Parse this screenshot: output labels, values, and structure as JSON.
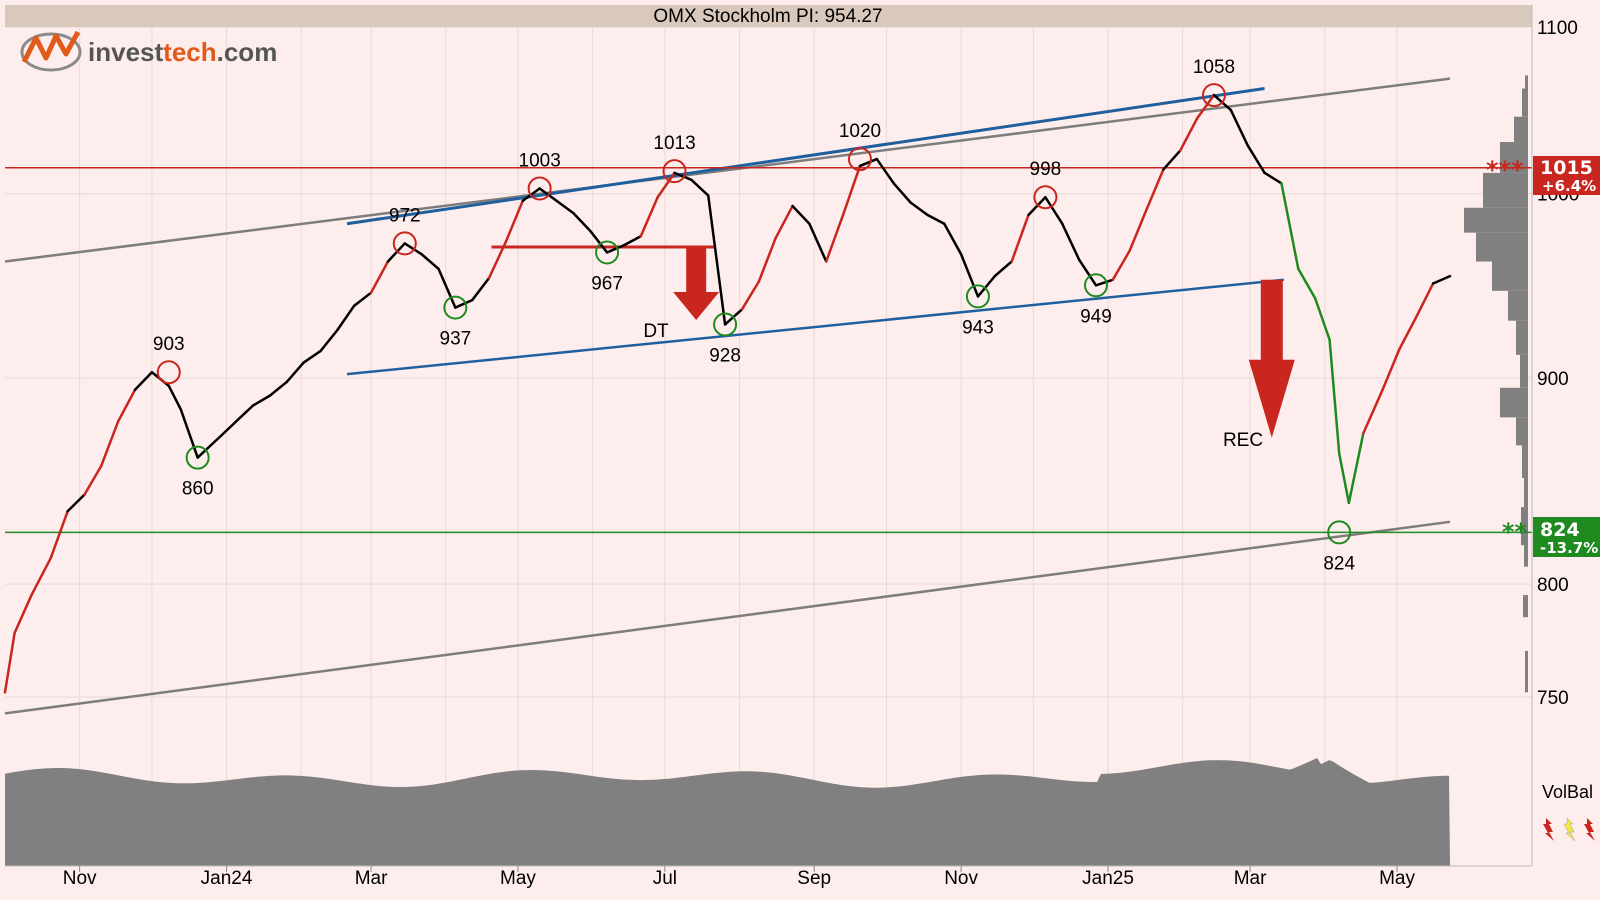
{
  "title": "OMX Stockholm PI: 954.27",
  "logo": {
    "text_a": "invest",
    "text_b": "tech",
    "text_c": ".com",
    "icon": "investtech-logo-icon"
  },
  "colors": {
    "background": "#fdeeed",
    "header_bar": "#d9c9bd",
    "price_up": "#c8261e",
    "price_neutral": "#000000",
    "price_down": "#1f8a1f",
    "resistance": "#c8261e",
    "support": "#1f8a1f",
    "trend_channel": "#1f5f9e",
    "long_channel": "#7d7d7d",
    "volume": "#808080"
  },
  "chart_data": {
    "type": "line",
    "title": "OMX Stockholm PI: 954.27",
    "ylim": [
      740,
      1110
    ],
    "y_ticks": [
      1100,
      1000,
      900,
      800,
      750
    ],
    "x_ticks": [
      "Nov",
      "Jan24",
      "Mar",
      "May",
      "Jul",
      "Sep",
      "Nov",
      "Jan25",
      "Mar",
      "May"
    ],
    "dates": [
      "2023-10-01",
      "2023-10-05",
      "2023-10-12",
      "2023-10-20",
      "2023-10-27",
      "2023-11-03",
      "2023-11-10",
      "2023-11-17",
      "2023-11-24",
      "2023-12-01",
      "2023-12-08",
      "2023-12-13",
      "2023-12-20",
      "2023-12-29",
      "2024-01-05",
      "2024-01-12",
      "2024-01-19",
      "2024-01-26",
      "2024-02-02",
      "2024-02-09",
      "2024-02-16",
      "2024-02-23",
      "2024-03-01",
      "2024-03-08",
      "2024-03-15",
      "2024-03-22",
      "2024-03-29",
      "2024-04-05",
      "2024-04-12",
      "2024-04-19",
      "2024-04-26",
      "2024-05-03",
      "2024-05-10",
      "2024-05-17",
      "2024-05-24",
      "2024-05-31",
      "2024-06-07",
      "2024-06-14",
      "2024-06-21",
      "2024-06-28",
      "2024-07-05",
      "2024-07-12",
      "2024-07-19",
      "2024-07-26",
      "2024-08-02",
      "2024-08-09",
      "2024-08-16",
      "2024-08-23",
      "2024-08-30",
      "2024-09-06",
      "2024-09-13",
      "2024-09-20",
      "2024-09-27",
      "2024-10-04",
      "2024-10-11",
      "2024-10-18",
      "2024-10-25",
      "2024-11-01",
      "2024-11-08",
      "2024-11-15",
      "2024-11-22",
      "2024-11-29",
      "2024-12-06",
      "2024-12-13",
      "2024-12-20",
      "2024-12-27",
      "2025-01-03",
      "2025-01-10",
      "2025-01-17",
      "2025-01-24",
      "2025-01-31",
      "2025-02-07",
      "2025-02-14",
      "2025-02-21",
      "2025-02-28",
      "2025-03-07",
      "2025-03-14",
      "2025-03-21",
      "2025-03-28",
      "2025-04-03",
      "2025-04-07",
      "2025-04-11",
      "2025-04-17",
      "2025-04-25",
      "2025-05-02",
      "2025-05-09",
      "2025-05-16",
      "2025-05-23"
    ],
    "values": [
      752,
      778,
      795,
      812,
      834,
      842,
      856,
      878,
      894,
      903,
      896,
      884,
      860,
      870,
      878,
      886,
      891,
      898,
      908,
      914,
      925,
      938,
      945,
      962,
      972,
      966,
      958,
      937,
      941,
      953,
      973,
      996,
      1003,
      996,
      989,
      979,
      967,
      971,
      976,
      998,
      1012,
      1008,
      999,
      928,
      936,
      951,
      975,
      993,
      983,
      962,
      988,
      1016,
      1020,
      1006,
      995,
      988,
      983,
      966,
      943,
      954,
      962,
      988,
      998,
      983,
      963,
      949,
      952,
      968,
      991,
      1014,
      1025,
      1044,
      1058,
      1049,
      1028,
      1012,
      1006,
      958,
      942,
      920,
      862,
      838,
      872,
      894,
      915,
      932,
      950,
      954
    ],
    "swing_labels": [
      {
        "value": 903,
        "type": "high"
      },
      {
        "value": 860,
        "type": "low"
      },
      {
        "value": 972,
        "type": "high"
      },
      {
        "value": 937,
        "type": "low"
      },
      {
        "value": 1003,
        "type": "high"
      },
      {
        "value": 967,
        "type": "low"
      },
      {
        "value": 1013,
        "type": "high"
      },
      {
        "value": 928,
        "type": "low"
      },
      {
        "value": 1020,
        "type": "high"
      },
      {
        "value": 943,
        "type": "low"
      },
      {
        "value": 998,
        "type": "high"
      },
      {
        "value": 949,
        "type": "low"
      },
      {
        "value": 1058,
        "type": "high"
      },
      {
        "value": 824,
        "type": "low"
      }
    ],
    "resistance": {
      "value": 1015,
      "change": "+6.4%",
      "marker": "***"
    },
    "support": {
      "value": 824,
      "change": "-13.7%",
      "marker": "**"
    },
    "annotations": [
      "DT",
      "REC"
    ],
    "grid": true,
    "volume_label": "VolBal"
  }
}
